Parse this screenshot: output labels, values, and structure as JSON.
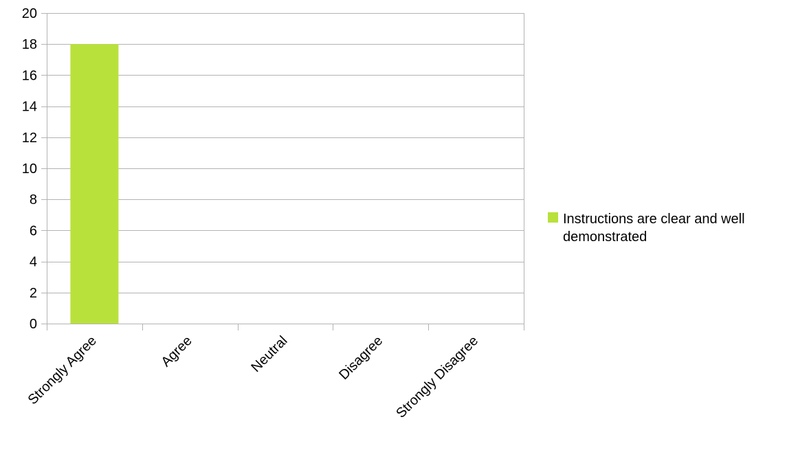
{
  "chart_data": {
    "type": "bar",
    "categories": [
      "Strongly Agree",
      "Agree",
      "Neutral",
      "Disagree",
      "Strongly Disagree"
    ],
    "series": [
      {
        "name": "Instructions are clear and well demonstrated",
        "values": [
          18,
          0,
          0,
          0,
          0
        ],
        "color": "#b9e13c"
      }
    ],
    "yticks": [
      "0",
      "2",
      "4",
      "6",
      "8",
      "10",
      "12",
      "14",
      "16",
      "18",
      "20"
    ],
    "ylim": [
      0,
      20
    ],
    "grid": true,
    "legend_position": "right",
    "title": "",
    "xlabel": "",
    "ylabel": ""
  }
}
